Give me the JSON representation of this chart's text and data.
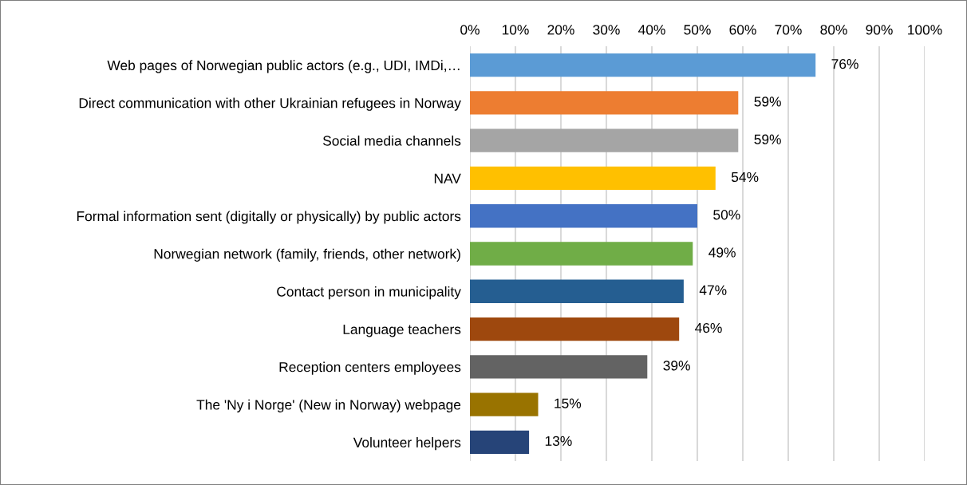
{
  "chart_data": {
    "type": "bar",
    "orientation": "horizontal",
    "categories": [
      "Web pages of Norwegian public actors (e.g., UDI, IMDi,…",
      "Direct communication with other Ukrainian refugees in Norway",
      "Social media channels",
      "NAV",
      "Formal information sent (digitally or physically) by public actors",
      "Norwegian network (family, friends, other network)",
      "Contact person in municipality",
      "Language teachers",
      "Reception centers employees",
      "The 'Ny i Norge' (New in Norway) webpage",
      "Volunteer helpers"
    ],
    "values": [
      76,
      59,
      59,
      54,
      50,
      49,
      47,
      46,
      39,
      15,
      13
    ],
    "colors": [
      "#5b9bd5",
      "#ed7d31",
      "#a5a5a5",
      "#ffc000",
      "#4472c4",
      "#70ad47",
      "#255e91",
      "#9e480e",
      "#636363",
      "#997300",
      "#264478"
    ],
    "value_labels": [
      "76%",
      "59%",
      "59%",
      "54%",
      "50%",
      "49%",
      "47%",
      "46%",
      "39%",
      "15%",
      "13%"
    ],
    "xlim": [
      0,
      100
    ],
    "xticks": [
      {
        "value": 0,
        "label": "0%"
      },
      {
        "value": 10,
        "label": "10%"
      },
      {
        "value": 20,
        "label": "20%"
      },
      {
        "value": 30,
        "label": "30%"
      },
      {
        "value": 40,
        "label": "40%"
      },
      {
        "value": 50,
        "label": "50%"
      },
      {
        "value": 60,
        "label": "60%"
      },
      {
        "value": 70,
        "label": "70%"
      },
      {
        "value": 80,
        "label": "80%"
      },
      {
        "value": 90,
        "label": "90%"
      },
      {
        "value": 100,
        "label": "100%"
      }
    ],
    "grid": "x"
  }
}
